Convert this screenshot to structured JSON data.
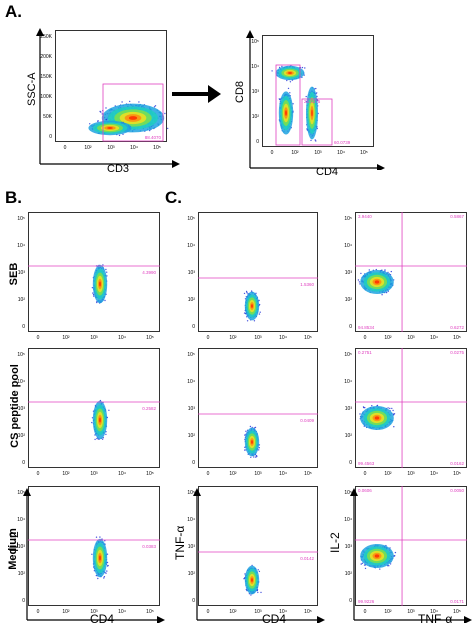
{
  "section_labels": {
    "a": "A.",
    "b": "B.",
    "c": "C."
  },
  "row_labels": {
    "seb": "SEB",
    "cs": "CS peptide pool",
    "medium": "Medium"
  },
  "axis_labels": {
    "ssca": "SSC-A",
    "cd3": "CD3",
    "cd8": "CD8",
    "cd4_a": "CD4",
    "il2_b": "IL-2",
    "cd4_b": "CD4",
    "tnfa_c": "TNF-α",
    "cd4_c": "CD4",
    "il2_c": "IL-2",
    "tnfa_x": "TNF-α"
  },
  "colors": {
    "gate": "#e040c0",
    "density_low": "#1a2ad6",
    "density_high": "#ff2a00"
  },
  "panel_a1": {
    "yticks": [
      "250K",
      "200K",
      "150K",
      "100K",
      "50K",
      "0"
    ],
    "xticks": [
      "0",
      "10²",
      "10³",
      "10⁴",
      "10⁵"
    ],
    "gate_value": "88.4070"
  },
  "panel_a2": {
    "yticks": [
      "10⁵",
      "10⁴",
      "10³",
      "10²",
      "0"
    ],
    "xticks": [
      "0",
      "10²",
      "10³",
      "10⁴",
      "10⁵"
    ],
    "gate_values": [
      "26.4375",
      "60.0739"
    ]
  },
  "log_ticks_y": [
    "10⁵",
    "10⁴",
    "10³",
    "10²",
    "0"
  ],
  "log_ticks_x": [
    "0",
    "10²",
    "10³",
    "10⁴",
    "10⁵"
  ],
  "panel_b": {
    "seb": {
      "value": "4.3990"
    },
    "cs": {
      "value": "0.2582"
    },
    "medium": {
      "value": "0.0383"
    }
  },
  "panel_c1": {
    "seb": {
      "value": "1.5360"
    },
    "cs": {
      "value": "0.0409"
    },
    "medium": {
      "value": "0.0142"
    }
  },
  "panel_c2": {
    "seb": {
      "q": [
        "3.9440",
        "0.5867",
        "94.8534",
        "0.6272"
      ]
    },
    "cs": {
      "q": [
        "0.2751",
        "0.0275",
        "99.4563",
        "0.0162"
      ]
    },
    "medium": {
      "q": [
        "0.0606",
        "0.0050",
        "99.9226",
        "0.0171"
      ]
    }
  }
}
